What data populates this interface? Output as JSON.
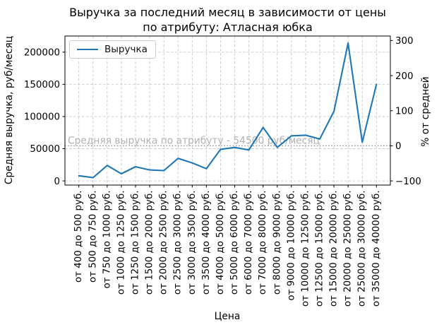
{
  "title": {
    "line1": "Выручка за последний месяц в зависимости от цены",
    "line2": "по атрибуту: Атласная юбка"
  },
  "legend": {
    "series_label": "Выручка"
  },
  "annotation": {
    "text": "Средняя выручка по атрибуту - 54500 руб/месяц"
  },
  "axes": {
    "left_label": "Средняя выручка, руб/месяц",
    "right_label": "% от средней",
    "x_label": "Цена",
    "left_ticks": [
      0,
      50000,
      100000,
      150000,
      200000
    ],
    "right_ticks": [
      -100,
      0,
      100,
      200,
      300
    ]
  },
  "colors": {
    "line": "#1f77b4",
    "grid": "#c8c8c8",
    "mean_line": "#8c8c8c",
    "annotation_text": "#b2b2b2",
    "spine": "#000000",
    "tick_label": "#000000"
  },
  "chart_data": {
    "type": "line",
    "title": "Выручка за последний месяц в зависимости от цены по атрибуту: Атласная юбка",
    "xlabel": "Цена",
    "ylabel_left": "Средняя выручка, руб/месяц",
    "ylabel_right": "% от средней",
    "legend_entries": [
      "Выручка"
    ],
    "legend_position": "upper left",
    "grid": true,
    "mean_value": 54500,
    "mean_line_style": "dotted",
    "ylim_left": [
      -6500,
      225000
    ],
    "right_axis_is_percent_of_mean": true,
    "categories": [
      "от 400 до 500 руб.",
      "от 500 до 750 руб.",
      "от 750 до 1000 руб.",
      "от 1000 до 1250 руб.",
      "от 1250 до 1500 руб.",
      "от 1500 до 2000 руб.",
      "от 2000 до 2500 руб.",
      "от 2500 до 3000 руб.",
      "от 3000 до 3500 руб.",
      "от 3500 до 4000 руб.",
      "от 4000 до 5000 руб.",
      "от 5000 до 6000 руб.",
      "от 6000 до 7000 руб.",
      "от 7000 до 8000 руб.",
      "от 8000 до 9000 руб.",
      "от 9000 до 10000 руб.",
      "от 10000 до 12500 руб.",
      "от 12500 до 15000 руб.",
      "от 15000 до 20000 руб.",
      "от 20000 до 25000 руб.",
      "от 25000 до 30000 руб.",
      "от 35000 до 40000 руб."
    ],
    "values": [
      8000,
      5000,
      24000,
      11000,
      22000,
      17000,
      16000,
      35000,
      28000,
      19000,
      49000,
      52000,
      48000,
      83000,
      52000,
      70000,
      71000,
      65000,
      108000,
      214000,
      60000,
      150000
    ]
  }
}
